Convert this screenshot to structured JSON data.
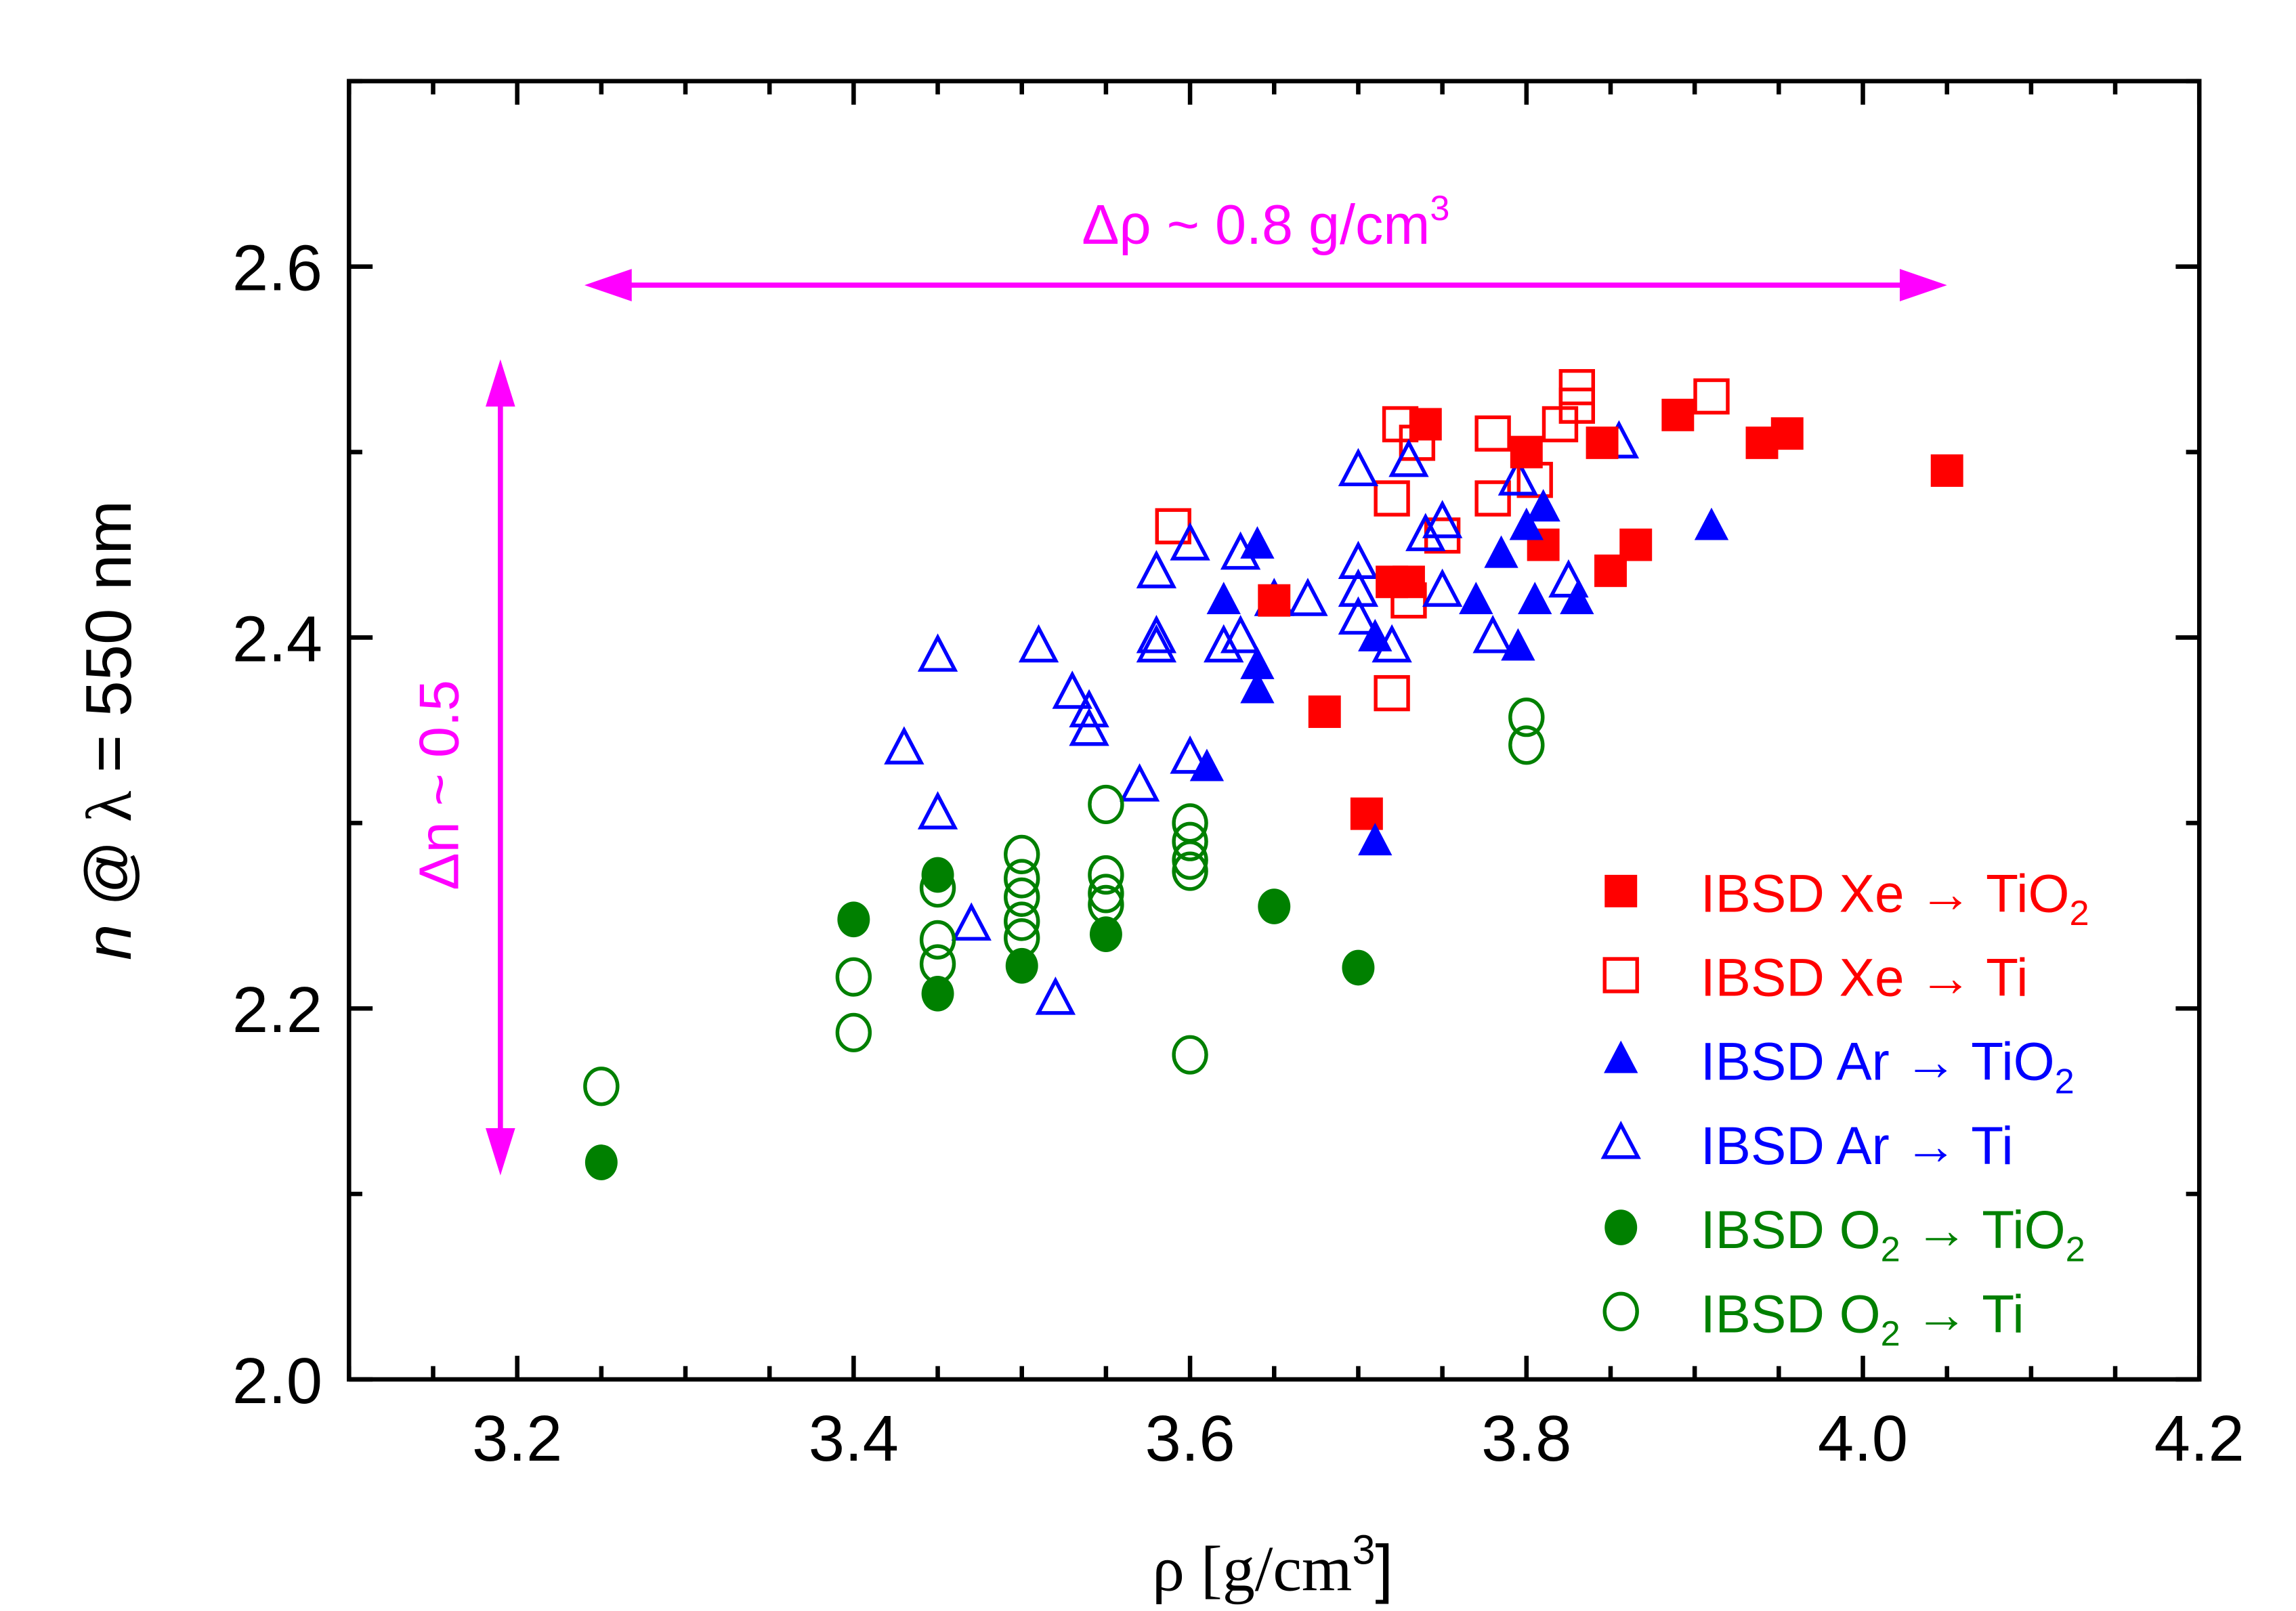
{
  "chart_data": {
    "type": "scatter",
    "title": "",
    "xlabel": "ρ [g/cm³]",
    "xlabel_parts": {
      "main": "ρ [g/cm",
      "sup": "3",
      "end": "]"
    },
    "ylabel": "n @ λ = 550 nm",
    "ylabel_parts": {
      "n": "n",
      "at": " @ ",
      "lambda": "λ",
      "rest": " = 550 nm"
    },
    "xlim": [
      3.1,
      4.2
    ],
    "ylim": [
      2.0,
      2.7
    ],
    "xticks": [
      3.2,
      3.4,
      3.6,
      3.8,
      4.0,
      4.2
    ],
    "xtick_labels": [
      "3.2",
      "3.4",
      "3.6",
      "3.8",
      "4.0",
      "4.2"
    ],
    "yticks": [
      2.0,
      2.2,
      2.4,
      2.6
    ],
    "ytick_labels": [
      "2.0",
      "2.2",
      "2.4",
      "2.6"
    ],
    "x_minor_step": 0.05,
    "y_minor_step": 0.1,
    "grid": false,
    "legend_position": "bottom-right",
    "colors": {
      "xe": "#FF0000",
      "ar": "#0000FF",
      "o2": "#008000",
      "annotation": "#FF00FF",
      "axis": "#000000"
    },
    "series": [
      {
        "name": "IBSD Xe → TiO2",
        "label_main": "IBSD Xe → TiO",
        "label_sub": "2",
        "label_tail": "",
        "marker": "square",
        "filled": true,
        "color": "#FF0000",
        "points": [
          [
            4.05,
            2.49
          ],
          [
            3.955,
            2.51
          ],
          [
            3.94,
            2.505
          ],
          [
            3.89,
            2.52
          ],
          [
            3.845,
            2.505
          ],
          [
            3.8,
            2.5
          ],
          [
            3.74,
            2.515
          ],
          [
            3.81,
            2.45
          ],
          [
            3.865,
            2.45
          ],
          [
            3.85,
            2.436
          ],
          [
            3.73,
            2.43
          ],
          [
            3.72,
            2.43
          ],
          [
            3.65,
            2.42
          ],
          [
            3.68,
            2.36
          ],
          [
            3.705,
            2.305
          ]
        ]
      },
      {
        "name": "IBSD Xe → Ti",
        "label_main": "IBSD Xe → Ti",
        "label_sub": "",
        "label_tail": "",
        "marker": "square",
        "filled": false,
        "color": "#FF0000",
        "points": [
          [
            3.91,
            2.53
          ],
          [
            3.83,
            2.535
          ],
          [
            3.83,
            2.525
          ],
          [
            3.82,
            2.515
          ],
          [
            3.78,
            2.51
          ],
          [
            3.725,
            2.515
          ],
          [
            3.735,
            2.505
          ],
          [
            3.805,
            2.485
          ],
          [
            3.78,
            2.475
          ],
          [
            3.72,
            2.475
          ],
          [
            3.75,
            2.455
          ],
          [
            3.59,
            2.46
          ],
          [
            3.73,
            2.42
          ],
          [
            3.72,
            2.37
          ]
        ]
      },
      {
        "name": "IBSD Ar → TiO2",
        "label_main": "IBSD Ar → TiO",
        "label_sub": "2",
        "label_tail": "",
        "marker": "triangle",
        "filled": true,
        "color": "#0000FF",
        "points": [
          [
            3.91,
            2.46
          ],
          [
            3.81,
            2.47
          ],
          [
            3.8,
            2.46
          ],
          [
            3.785,
            2.445
          ],
          [
            3.805,
            2.42
          ],
          [
            3.83,
            2.42
          ],
          [
            3.77,
            2.42
          ],
          [
            3.795,
            2.395
          ],
          [
            3.64,
            2.45
          ],
          [
            3.62,
            2.42
          ],
          [
            3.64,
            2.385
          ],
          [
            3.64,
            2.372
          ],
          [
            3.71,
            2.4
          ],
          [
            3.61,
            2.33
          ],
          [
            3.71,
            2.29
          ]
        ]
      },
      {
        "name": "IBSD Ar → Ti",
        "label_main": "IBSD Ar → Ti",
        "label_sub": "",
        "label_tail": "",
        "marker": "triangle",
        "filled": false,
        "color": "#0000FF",
        "points": [
          [
            3.855,
            2.505
          ],
          [
            3.7,
            2.49
          ],
          [
            3.73,
            2.495
          ],
          [
            3.74,
            2.455
          ],
          [
            3.75,
            2.462
          ],
          [
            3.795,
            2.485
          ],
          [
            3.6,
            2.45
          ],
          [
            3.58,
            2.435
          ],
          [
            3.63,
            2.445
          ],
          [
            3.65,
            2.42
          ],
          [
            3.67,
            2.42
          ],
          [
            3.7,
            2.44
          ],
          [
            3.7,
            2.425
          ],
          [
            3.7,
            2.41
          ],
          [
            3.72,
            2.395
          ],
          [
            3.75,
            2.425
          ],
          [
            3.78,
            2.4
          ],
          [
            3.825,
            2.43
          ],
          [
            3.58,
            2.4
          ],
          [
            3.58,
            2.395
          ],
          [
            3.62,
            2.395
          ],
          [
            3.63,
            2.4
          ],
          [
            3.45,
            2.39
          ],
          [
            3.51,
            2.395
          ],
          [
            3.53,
            2.37
          ],
          [
            3.54,
            2.36
          ],
          [
            3.54,
            2.35
          ],
          [
            3.43,
            2.34
          ],
          [
            3.45,
            2.305
          ],
          [
            3.6,
            2.335
          ],
          [
            3.57,
            2.32
          ],
          [
            3.47,
            2.245
          ],
          [
            3.52,
            2.205
          ]
        ]
      },
      {
        "name": "IBSD O2 → TiO2",
        "label_main": "IBSD O",
        "label_sub": "2",
        "label_tail": " → TiO",
        "label_sub2": "2",
        "marker": "circle",
        "filled": true,
        "color": "#008000",
        "points": [
          [
            3.25,
            2.117
          ],
          [
            3.4,
            2.248
          ],
          [
            3.45,
            2.272
          ],
          [
            3.45,
            2.208
          ],
          [
            3.5,
            2.223
          ],
          [
            3.55,
            2.24
          ],
          [
            3.65,
            2.255
          ],
          [
            3.7,
            2.222
          ]
        ]
      },
      {
        "name": "IBSD O2 → Ti",
        "label_main": "IBSD O",
        "label_sub": "2",
        "label_tail": " → Ti",
        "marker": "circle",
        "filled": false,
        "color": "#008000",
        "points": [
          [
            3.25,
            2.158
          ],
          [
            3.4,
            2.217
          ],
          [
            3.4,
            2.187
          ],
          [
            3.45,
            2.265
          ],
          [
            3.45,
            2.237
          ],
          [
            3.45,
            2.224
          ],
          [
            3.5,
            2.283
          ],
          [
            3.5,
            2.27
          ],
          [
            3.5,
            2.26
          ],
          [
            3.5,
            2.247
          ],
          [
            3.5,
            2.238
          ],
          [
            3.55,
            2.31
          ],
          [
            3.55,
            2.272
          ],
          [
            3.55,
            2.262
          ],
          [
            3.55,
            2.256
          ],
          [
            3.6,
            2.3
          ],
          [
            3.6,
            2.29
          ],
          [
            3.6,
            2.28
          ],
          [
            3.6,
            2.274
          ],
          [
            3.6,
            2.175
          ],
          [
            3.8,
            2.357
          ],
          [
            3.8,
            2.342
          ]
        ]
      }
    ],
    "annotations": [
      {
        "name": "delta-rho",
        "text_main": "Δρ ~ 0.8 g/cm",
        "text_sup": "3",
        "arrow": "horizontal-double",
        "from": [
          3.24,
          2.59
        ],
        "to": [
          4.05,
          2.59
        ]
      },
      {
        "name": "delta-n",
        "text": "Δn ~ 0.5",
        "arrow": "vertical-double",
        "from": [
          3.19,
          2.11
        ],
        "to": [
          3.19,
          2.55
        ]
      }
    ]
  }
}
